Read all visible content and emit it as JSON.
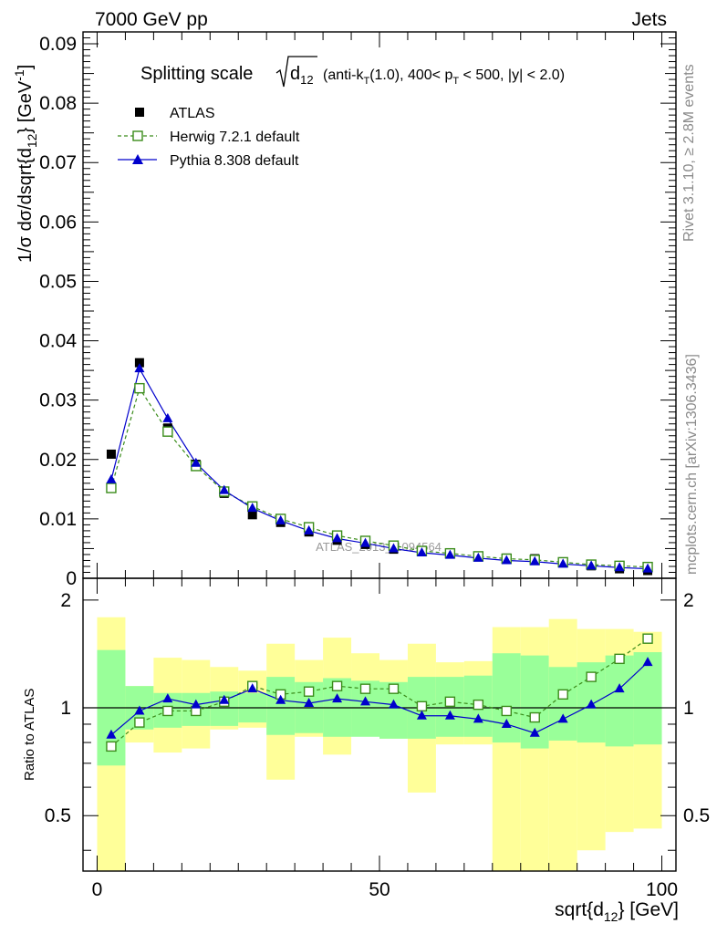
{
  "header": {
    "left": "7000 GeV pp",
    "right": "Jets"
  },
  "side_text": {
    "top": "Rivet 3.1.10, ≥ 2.8M events",
    "bottom": "mcplots.cern.ch [arXiv:1306.3436]"
  },
  "watermark": "ATLAS_2013_I1094564",
  "title": {
    "main": "Splitting scale",
    "sqrt_label": "d",
    "sqrt_sub": "12",
    "rest_a": "(anti-k",
    "rest_sub": "T",
    "rest_b": "(1.0), 400< p",
    "rest_sub2": "T",
    "rest_c": " < 500, |y| < 2.0)"
  },
  "axes": {
    "ylabel_main": "1/σ dσ/dsqrt{d",
    "ylabel_sub": "12",
    "ylabel_tail": "} [GeV",
    "ylabel_sup": "-1",
    "ylabel_end": "]",
    "ylabel_ratio": "Ratio to ATLAS",
    "xlabel_main": "sqrt{d",
    "xlabel_sub": "12",
    "xlabel_tail": "} [GeV]"
  },
  "legend": [
    {
      "label": "ATLAS",
      "color": "#000000"
    },
    {
      "label": "Herwig 7.2.1 default",
      "color": "#3a8c1a"
    },
    {
      "label": "Pythia 8.308 default",
      "color": "#0000cc"
    }
  ],
  "chart_data": [
    {
      "type": "line",
      "xlim": [
        -2.5,
        102.5
      ],
      "ylim": [
        0,
        0.092
      ],
      "yticks": [
        0,
        0.01,
        0.02,
        0.03,
        0.04,
        0.05,
        0.06,
        0.07,
        0.08,
        0.09
      ],
      "ytick_labels": [
        "0",
        "0.01",
        "0.02",
        "0.03",
        "0.04",
        "0.05",
        "0.06",
        "0.07",
        "0.08",
        "0.09"
      ],
      "x": [
        2.5,
        7.5,
        12.5,
        17.5,
        22.5,
        27.5,
        32.5,
        37.5,
        42.5,
        47.5,
        52.5,
        57.5,
        62.5,
        67.5,
        72.5,
        77.5,
        82.5,
        87.5,
        92.5,
        97.5
      ],
      "series": [
        {
          "name": "ATLAS",
          "color": "#000000",
          "values": [
            0.0209,
            0.0363,
            0.0253,
            0.0192,
            0.0143,
            0.0107,
            0.0094,
            0.0078,
            0.0064,
            0.0057,
            0.0049,
            0.0045,
            0.0041,
            0.0037,
            0.0034,
            0.0033,
            0.0026,
            0.0021,
            0.0016,
            0.0013
          ]
        },
        {
          "name": "Herwig 7.2.1 default",
          "color": "#3a8c1a",
          "values": [
            0.0152,
            0.032,
            0.0247,
            0.0189,
            0.0146,
            0.0121,
            0.01,
            0.0086,
            0.0072,
            0.0063,
            0.0055,
            0.0046,
            0.0042,
            0.0037,
            0.0033,
            0.0031,
            0.0027,
            0.0023,
            0.0021,
            0.0019
          ]
        },
        {
          "name": "Pythia 8.308 default",
          "color": "#0000cc",
          "values": [
            0.0166,
            0.0353,
            0.0269,
            0.0194,
            0.0148,
            0.0118,
            0.0097,
            0.008,
            0.0067,
            0.0059,
            0.005,
            0.0043,
            0.0039,
            0.0034,
            0.003,
            0.0028,
            0.0024,
            0.0021,
            0.0018,
            0.0016
          ]
        }
      ]
    },
    {
      "type": "line",
      "xlim": [
        -2.5,
        102.5
      ],
      "ylim": [
        0.35,
        2.3
      ],
      "xticks": [
        0,
        50,
        100
      ],
      "xtick_labels": [
        "0",
        "50",
        "100"
      ],
      "yticks": [
        0.5,
        1,
        2
      ],
      "ytick_labels": [
        "0.5",
        "1",
        "2"
      ],
      "x": [
        2.5,
        7.5,
        12.5,
        17.5,
        22.5,
        27.5,
        32.5,
        37.5,
        42.5,
        47.5,
        52.5,
        57.5,
        62.5,
        67.5,
        72.5,
        77.5,
        82.5,
        87.5,
        92.5,
        97.5
      ],
      "bands": {
        "green": [
          [
            0.69,
            1.45
          ],
          [
            0.87,
            1.15
          ],
          [
            0.88,
            1.1
          ],
          [
            0.89,
            1.1
          ],
          [
            0.89,
            1.11
          ],
          [
            0.91,
            1.1
          ],
          [
            0.84,
            1.22
          ],
          [
            0.85,
            1.18
          ],
          [
            0.83,
            1.21
          ],
          [
            0.83,
            1.19
          ],
          [
            0.82,
            1.18
          ],
          [
            0.82,
            1.22
          ],
          [
            0.83,
            1.22
          ],
          [
            0.83,
            1.23
          ],
          [
            0.8,
            1.42
          ],
          [
            0.77,
            1.4
          ],
          [
            0.81,
            1.3
          ],
          [
            0.8,
            1.34
          ],
          [
            0.78,
            1.4
          ],
          [
            0.79,
            1.43
          ]
        ],
        "yellow": [
          [
            0.35,
            1.79
          ],
          [
            0.8,
            1.15
          ],
          [
            0.75,
            1.38
          ],
          [
            0.77,
            1.36
          ],
          [
            0.87,
            1.3
          ],
          [
            0.88,
            1.27
          ],
          [
            0.63,
            1.51
          ],
          [
            0.83,
            1.36
          ],
          [
            0.74,
            1.57
          ],
          [
            0.84,
            1.42
          ],
          [
            0.82,
            1.36
          ],
          [
            0.58,
            1.51
          ],
          [
            0.79,
            1.34
          ],
          [
            0.79,
            1.35
          ],
          [
            0.35,
            1.68
          ],
          [
            0.35,
            1.68
          ],
          [
            0.35,
            1.77
          ],
          [
            0.4,
            1.66
          ],
          [
            0.45,
            1.66
          ],
          [
            0.46,
            1.63
          ]
        ]
      },
      "series": [
        {
          "name": "Herwig 7.2.1 default",
          "color": "#3a8c1a",
          "values": [
            0.78,
            0.91,
            0.98,
            0.98,
            1.04,
            1.15,
            1.09,
            1.11,
            1.15,
            1.13,
            1.13,
            1.01,
            1.04,
            1.02,
            0.98,
            0.94,
            1.09,
            1.22,
            1.37,
            1.56
          ]
        },
        {
          "name": "Pythia 8.308 default",
          "color": "#0000cc",
          "values": [
            0.84,
            0.98,
            1.06,
            1.02,
            1.05,
            1.13,
            1.05,
            1.03,
            1.06,
            1.04,
            1.02,
            0.95,
            0.95,
            0.93,
            0.9,
            0.85,
            0.93,
            1.02,
            1.13,
            1.34
          ]
        }
      ]
    }
  ]
}
